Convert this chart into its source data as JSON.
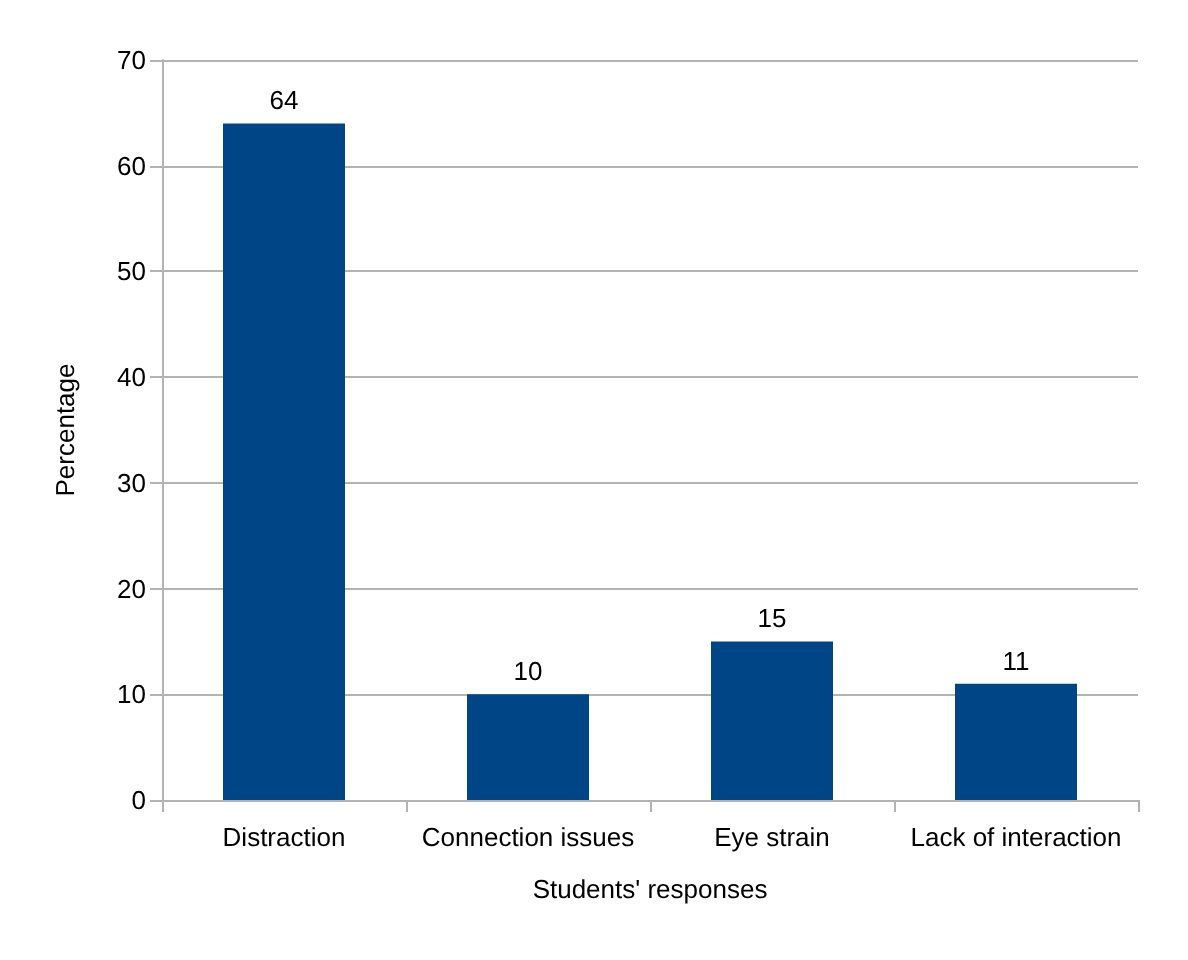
{
  "chart_data": {
    "type": "bar",
    "xlabel": "Students' responses",
    "ylabel": "Percentage",
    "categories": [
      "Distraction",
      "Connection issues",
      "Eye strain",
      "Lack of interaction"
    ],
    "values": [
      64,
      10,
      15,
      11
    ],
    "color": "#004586",
    "ylim": [
      0,
      70
    ],
    "yticks": [
      0,
      10,
      20,
      30,
      40,
      50,
      60,
      70
    ],
    "grid": "y",
    "data_labels": true
  }
}
